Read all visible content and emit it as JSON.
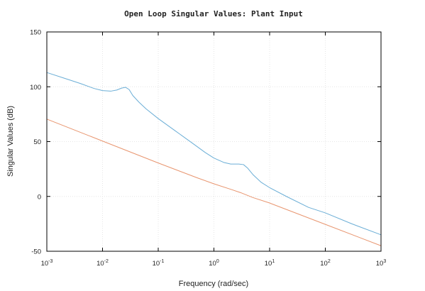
{
  "chart_data": {
    "type": "line",
    "title": "Open Loop Singular Values: Plant Input",
    "xlabel": "Frequency (rad/sec)",
    "ylabel": "Singular Values (dB)",
    "xscale": "log",
    "xlim": [
      0.001,
      1000
    ],
    "ylim": [
      -50,
      150
    ],
    "x_ticks": [
      {
        "value": 0.001,
        "base": "10",
        "exp": "-3"
      },
      {
        "value": 0.01,
        "base": "10",
        "exp": "-2"
      },
      {
        "value": 0.1,
        "base": "10",
        "exp": "-1"
      },
      {
        "value": 1,
        "base": "10",
        "exp": "0"
      },
      {
        "value": 10,
        "base": "10",
        "exp": "1"
      },
      {
        "value": 100,
        "base": "10",
        "exp": "2"
      },
      {
        "value": 1000,
        "base": "10",
        "exp": "3"
      }
    ],
    "y_ticks": [
      -50,
      0,
      50,
      100,
      150
    ],
    "grid": true,
    "series": [
      {
        "color": "#6baed6",
        "points": [
          [
            0.001,
            113
          ],
          [
            0.002,
            108
          ],
          [
            0.004,
            103
          ],
          [
            0.007,
            98.5
          ],
          [
            0.01,
            96.5
          ],
          [
            0.014,
            96
          ],
          [
            0.018,
            97
          ],
          [
            0.022,
            98.8
          ],
          [
            0.026,
            99.5
          ],
          [
            0.03,
            97.5
          ],
          [
            0.035,
            92
          ],
          [
            0.045,
            86
          ],
          [
            0.06,
            80
          ],
          [
            0.1,
            71
          ],
          [
            0.2,
            60
          ],
          [
            0.4,
            49
          ],
          [
            0.7,
            40
          ],
          [
            1,
            35
          ],
          [
            1.5,
            31
          ],
          [
            2,
            29.5
          ],
          [
            2.8,
            29.5
          ],
          [
            3.4,
            29
          ],
          [
            4,
            26
          ],
          [
            5,
            20
          ],
          [
            7,
            13
          ],
          [
            10,
            8
          ],
          [
            20,
            0
          ],
          [
            50,
            -10
          ],
          [
            100,
            -15
          ],
          [
            300,
            -25
          ],
          [
            1000,
            -35
          ]
        ]
      },
      {
        "color": "#e8956f",
        "points": [
          [
            0.001,
            70.5
          ],
          [
            0.01,
            50.5
          ],
          [
            0.1,
            30.5
          ],
          [
            0.5,
            17
          ],
          [
            1,
            11.5
          ],
          [
            2,
            6.5
          ],
          [
            3,
            3.5
          ],
          [
            5,
            -1
          ],
          [
            10,
            -6
          ],
          [
            100,
            -25.5
          ],
          [
            1000,
            -45
          ]
        ]
      }
    ]
  }
}
